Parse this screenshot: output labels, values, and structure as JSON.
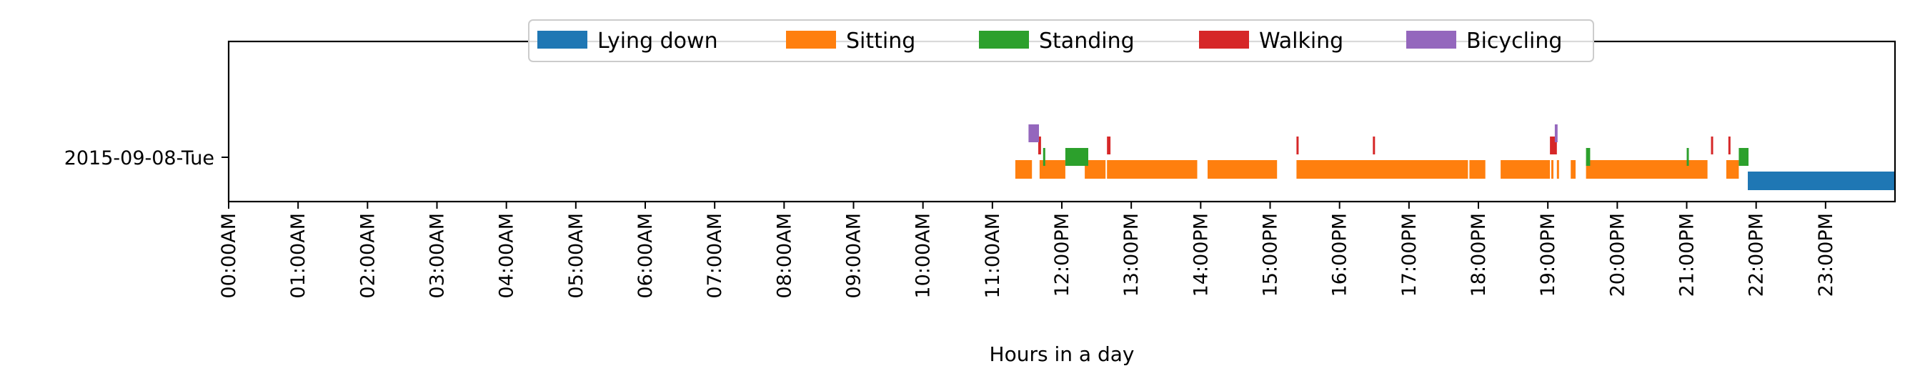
{
  "chart_data": {
    "type": "bar",
    "xlabel": "Hours in a day",
    "ylabel": "",
    "xlim": [
      0,
      24
    ],
    "grid": false,
    "legend_placement": "top-center",
    "row_label": "2015-09-08-Tue",
    "tick_labels": [
      "00:00AM",
      "01:00AM",
      "02:00AM",
      "03:00AM",
      "04:00AM",
      "05:00AM",
      "06:00AM",
      "07:00AM",
      "08:00AM",
      "09:00AM",
      "10:00AM",
      "11:00AM",
      "12:00PM",
      "13:00PM",
      "14:00PM",
      "15:00PM",
      "16:00PM",
      "17:00PM",
      "18:00PM",
      "19:00PM",
      "20:00PM",
      "21:00PM",
      "22:00PM",
      "23:00PM"
    ],
    "series": [
      {
        "name": "Lying down",
        "color": "#1f77b4",
        "segments": [
          [
            21.88,
            24.0
          ]
        ]
      },
      {
        "name": "Sitting",
        "color": "#ff7f0e",
        "segments": [
          [
            11.33,
            11.57
          ],
          [
            11.68,
            12.05
          ],
          [
            12.33,
            12.63
          ],
          [
            12.65,
            13.95
          ],
          [
            14.1,
            15.1
          ],
          [
            15.38,
            17.85
          ],
          [
            17.87,
            18.1
          ],
          [
            18.32,
            19.03
          ],
          [
            19.05,
            19.07
          ],
          [
            19.13,
            19.16
          ],
          [
            19.33,
            19.4
          ],
          [
            19.55,
            21.3
          ],
          [
            21.57,
            21.75
          ]
        ]
      },
      {
        "name": "Standing",
        "color": "#2ca02c",
        "segments": [
          [
            11.73,
            11.76
          ],
          [
            12.05,
            12.38
          ],
          [
            19.55,
            19.61
          ],
          [
            21.0,
            21.03
          ],
          [
            21.75,
            21.89
          ]
        ]
      },
      {
        "name": "Walking",
        "color": "#d62728",
        "segments": [
          [
            11.66,
            11.7
          ],
          [
            12.65,
            12.7
          ],
          [
            15.38,
            15.41
          ],
          [
            16.48,
            16.51
          ],
          [
            19.03,
            19.13
          ],
          [
            21.35,
            21.38
          ],
          [
            21.6,
            21.63
          ]
        ]
      },
      {
        "name": "Bicycling",
        "color": "#9467bd",
        "segments": [
          [
            11.52,
            11.67
          ],
          [
            19.1,
            19.14
          ]
        ]
      }
    ]
  }
}
